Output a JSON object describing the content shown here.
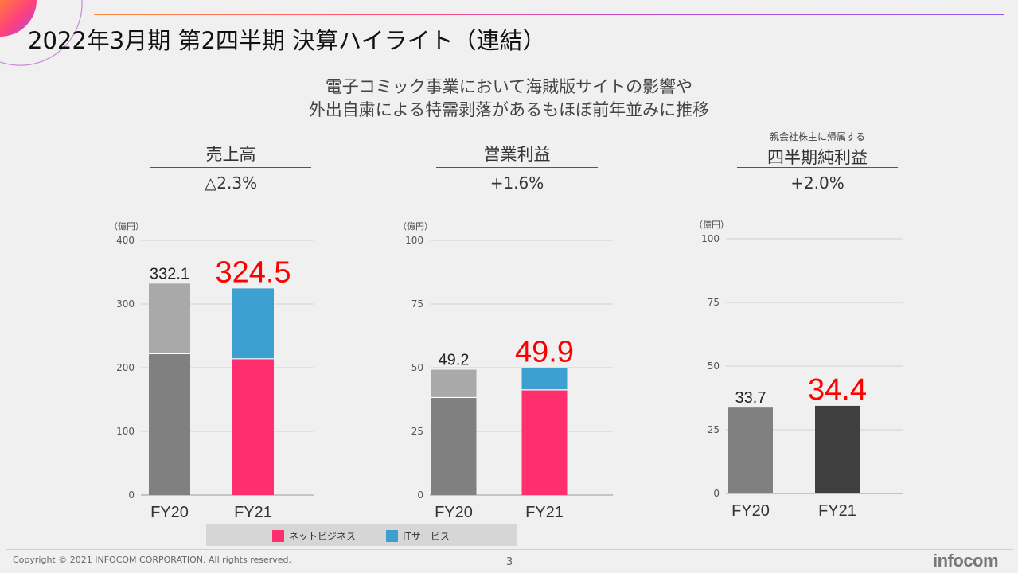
{
  "slide": {
    "title": "2022年3月期 第2四半期 決算ハイライト（連結）",
    "subtitle_line1": "電子コミック事業において海賊版サイトの影響や",
    "subtitle_line2": "外出自粛による特需剥落があるもほぼ前年並みに推移",
    "page_number": "3",
    "copyright": "Copyright © 2021 INFOCOM CORPORATION. All rights reserved.",
    "logo": "infocom"
  },
  "colors": {
    "fy20_lower": "#808080",
    "fy20_upper": "#a9a9a9",
    "net_business": "#ff2e6f",
    "it_service": "#3e9fd1",
    "fy21_net_income": "#3f3f3f",
    "highlight_label": "#ff0000"
  },
  "metrics": [
    {
      "name": "売上高",
      "note": "",
      "change": "△2.3%"
    },
    {
      "name": "営業利益",
      "note": "",
      "change": "+1.6%"
    },
    {
      "name": "四半期純利益",
      "note": "親会社株主に帰属する",
      "change": "+2.0%"
    }
  ],
  "legend": {
    "net_business": "ネットビジネス",
    "it_service": "ITサービス"
  },
  "chart_data": [
    {
      "type": "bar",
      "stacked": true,
      "title": "売上高",
      "unit": "（億円）",
      "categories": [
        "FY20",
        "FY21"
      ],
      "totals": [
        "332.1",
        "324.5"
      ],
      "series": [
        {
          "name": "ネットビジネス",
          "values": [
            222,
            214
          ]
        },
        {
          "name": "ITサービス",
          "values": [
            110.1,
            110.5
          ]
        }
      ],
      "ylim": [
        0,
        400
      ],
      "yticks": [
        0,
        100,
        200,
        300,
        400
      ],
      "grid": true
    },
    {
      "type": "bar",
      "stacked": true,
      "title": "営業利益",
      "unit": "（億円）",
      "categories": [
        "FY20",
        "FY21"
      ],
      "totals": [
        "49.2",
        "49.9"
      ],
      "series": [
        {
          "name": "ネットビジネス",
          "values": [
            38.3,
            41.3
          ]
        },
        {
          "name": "ITサービス",
          "values": [
            10.9,
            8.6
          ]
        }
      ],
      "ylim": [
        0,
        100
      ],
      "yticks": [
        0,
        25,
        50,
        75,
        100
      ],
      "grid": true
    },
    {
      "type": "bar",
      "stacked": false,
      "title": "四半期純利益",
      "unit": "（億円）",
      "categories": [
        "FY20",
        "FY21"
      ],
      "totals": [
        "33.7",
        "34.4"
      ],
      "series": [
        {
          "values": [
            33.7,
            34.4
          ]
        }
      ],
      "ylim": [
        0,
        100
      ],
      "yticks": [
        0,
        25,
        50,
        75,
        100
      ],
      "grid": true
    }
  ]
}
